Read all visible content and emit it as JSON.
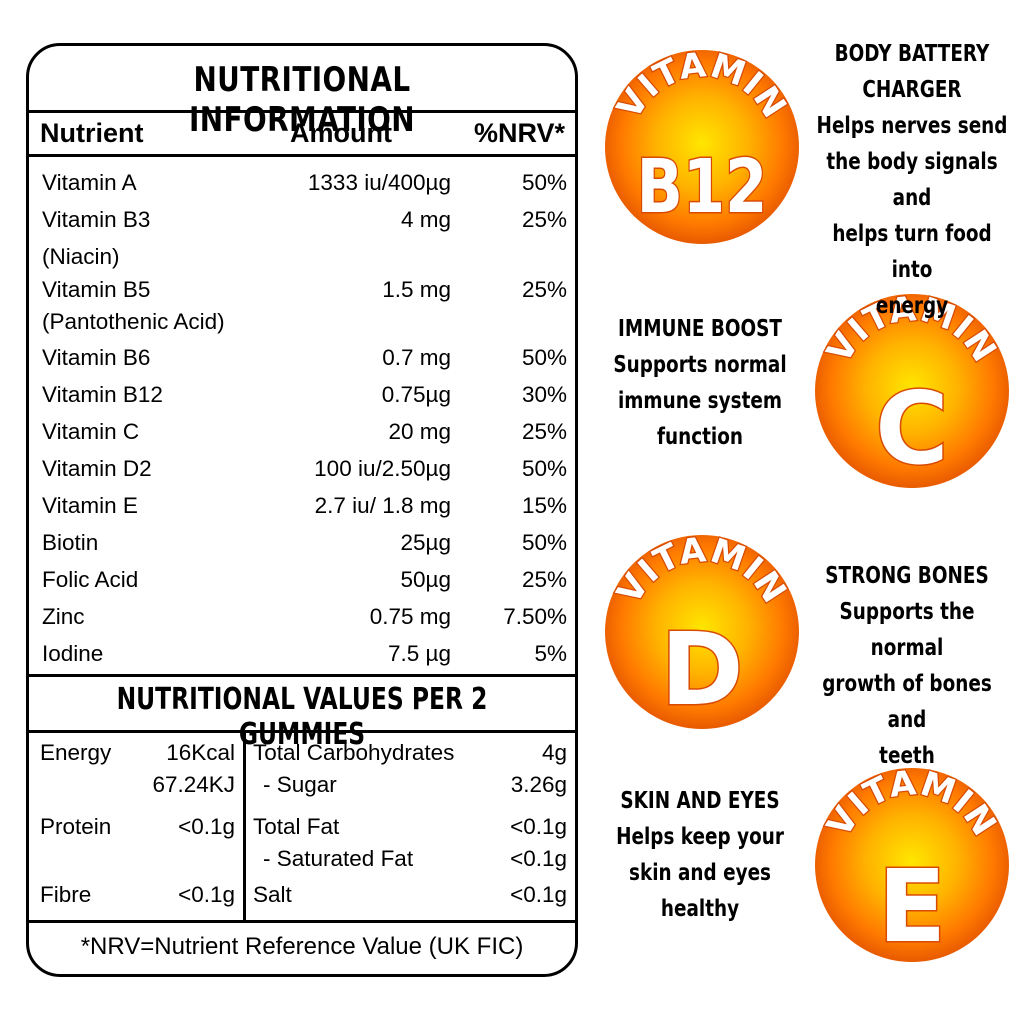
{
  "panel": {
    "title": "NUTRITIONAL INFORMATION",
    "headers": {
      "nutrient": "Nutrient",
      "amount": "Amount",
      "nrv": "%NRV*"
    },
    "rows": [
      {
        "name": "Vitamin A",
        "amount": "1333 iu/400µg",
        "nrv": "50%"
      },
      {
        "name": "Vitamin B3",
        "sub": "(Niacin)",
        "amount": "4 mg",
        "nrv": "25%"
      },
      {
        "name": "Vitamin B5",
        "sub": "(Pantothenic Acid)",
        "amount": "1.5 mg",
        "nrv": "25%"
      },
      {
        "name": "Vitamin B6",
        "amount": "0.7 mg",
        "nrv": "50%"
      },
      {
        "name": "Vitamin B12",
        "amount": "0.75µg",
        "nrv": "30%"
      },
      {
        "name": "Vitamin C",
        "amount": "20 mg",
        "nrv": "25%"
      },
      {
        "name": "Vitamin D2",
        "amount": "100 iu/2.50µg",
        "nrv": "50%"
      },
      {
        "name": "Vitamin E",
        "amount": "2.7 iu/ 1.8 mg",
        "nrv": "15%"
      },
      {
        "name": "Biotin",
        "amount": "25µg",
        "nrv": "50%"
      },
      {
        "name": "Folic Acid",
        "amount": "50µg",
        "nrv": "25%"
      },
      {
        "name": "Zinc",
        "amount": "0.75 mg",
        "nrv": "7.50%"
      },
      {
        "name": "Iodine",
        "amount": "7.5 µg",
        "nrv": "5%"
      }
    ],
    "values_title": "NUTRITIONAL VALUES PER 2 GUMMIES",
    "values": {
      "energy_label": "Energy",
      "energy_kcal": "16Kcal",
      "energy_kj": "67.24KJ",
      "protein_label": "Protein",
      "protein": "<0.1g",
      "fibre_label": "Fibre",
      "fibre": "<0.1g",
      "carbs_label": "Total Carbohydrates",
      "carbs": "4g",
      "sugar_label": "- Sugar",
      "sugar": "3.26g",
      "fat_label": "Total Fat",
      "fat": "<0.1g",
      "satfat_label": "- Saturated Fat",
      "satfat": "<0.1g",
      "salt_label": "Salt",
      "salt": "<0.1g"
    },
    "footnote": "*NRV=Nutrient Reference Value (UK FIC)"
  },
  "badges": [
    {
      "arc": "VITAMIN",
      "letter": "B12",
      "heading": "BODY BATTERY CHARGER",
      "heading_lines": [
        "BODY BATTERY",
        "CHARGER"
      ],
      "body_lines": [
        "Helps nerves send",
        "the body signals and",
        "helps turn food into",
        "energy"
      ]
    },
    {
      "arc": "VITAMIN",
      "letter": "C",
      "heading": "IMMUNE BOOST",
      "body_lines": [
        "Supports normal",
        "immune system",
        "function"
      ]
    },
    {
      "arc": "VITAMIN",
      "letter": "D",
      "heading": "STRONG BONES",
      "body_lines": [
        "Supports the normal",
        "growth of bones and",
        "teeth"
      ]
    },
    {
      "arc": "VITAMIN",
      "letter": "E",
      "heading": "SKIN AND EYES",
      "body_lines": [
        "Helps keep your",
        "skin and eyes",
        "healthy"
      ]
    }
  ],
  "colors": {
    "badge_outer": "#f06a00",
    "badge_inner": "#ffd000",
    "badge_mid": "#ff9a00",
    "text_outline": "#d84a00"
  }
}
